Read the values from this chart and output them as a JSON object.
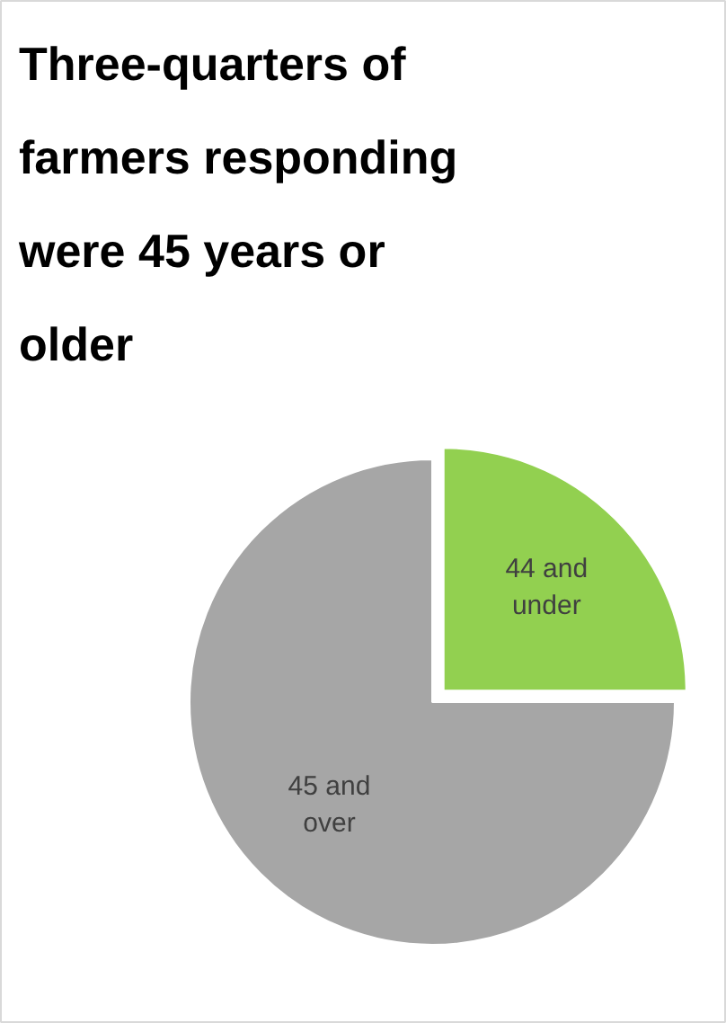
{
  "chart_data": {
    "type": "pie",
    "title": "Three-quarters of farmers responding were 45 years or older",
    "categories": [
      "44 and\nunder",
      "45 and\nover"
    ],
    "values": [
      25,
      75
    ],
    "colors": [
      "#92d050",
      "#a6a6a6"
    ]
  }
}
